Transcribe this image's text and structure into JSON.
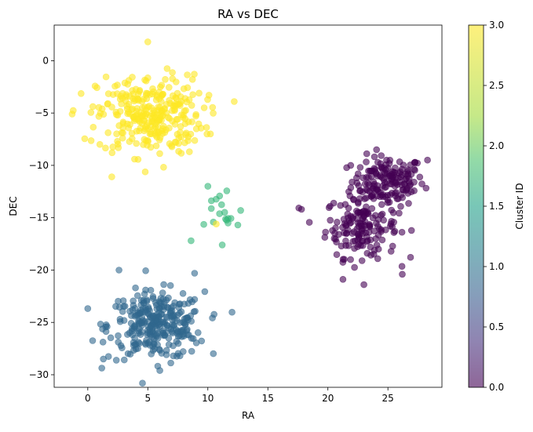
{
  "chart_data": {
    "type": "scatter",
    "title": "RA vs DEC",
    "xlabel": "RA",
    "ylabel": "DEC",
    "xlim": [
      -2.8,
      29.5
    ],
    "ylim": [
      -31.2,
      3.4
    ],
    "xticks": [
      0,
      5,
      10,
      15,
      20,
      25
    ],
    "yticks": [
      0,
      -5,
      -10,
      -15,
      -20,
      -25,
      -30
    ],
    "colorbar": {
      "label": "Cluster ID",
      "range": [
        0.0,
        3.0
      ],
      "ticks": [
        "0.0",
        "0.5",
        "1.0",
        "1.5",
        "2.0",
        "2.5",
        "3.0"
      ],
      "colormap": "viridis"
    },
    "grid": false,
    "marker_alpha": 0.6,
    "clusters": [
      {
        "id": 3,
        "color": "#fde725",
        "n": 300,
        "center": [
          5.2,
          -5.2
        ],
        "spread": [
          2.2,
          1.9
        ]
      },
      {
        "id": 2,
        "color": "#35b779",
        "n": 16,
        "center": [
          11.2,
          -14.3
        ],
        "spread": [
          0.9,
          1.4
        ]
      },
      {
        "id": 1,
        "color": "#31688e",
        "n": 300,
        "center": [
          5.7,
          -25.3
        ],
        "spread": [
          2.0,
          1.6
        ]
      },
      {
        "id": 0,
        "color": "#440154",
        "n": 160,
        "center": [
          25.0,
          -11.5
        ],
        "spread": [
          1.5,
          1.2
        ]
      },
      {
        "id": 0,
        "color": "#440154",
        "n": 160,
        "center": [
          22.8,
          -15.8
        ],
        "spread": [
          1.5,
          1.5
        ]
      }
    ],
    "points_sample": [
      {
        "x": -1.3,
        "y": -5.1,
        "c": 3
      },
      {
        "x": 5.0,
        "y": 1.8,
        "c": 3
      },
      {
        "x": 12.2,
        "y": -3.9,
        "c": 3
      },
      {
        "x": 2.0,
        "y": -11.1,
        "c": 3
      },
      {
        "x": 10.0,
        "y": -12.0,
        "c": 2
      },
      {
        "x": 8.6,
        "y": -17.2,
        "c": 2
      },
      {
        "x": 12.5,
        "y": -15.7,
        "c": 2
      },
      {
        "x": 11.2,
        "y": -17.6,
        "c": 2
      },
      {
        "x": 10.7,
        "y": -15.6,
        "c": 3
      },
      {
        "x": 2.6,
        "y": -20.0,
        "c": 1
      },
      {
        "x": 6.0,
        "y": -29.6,
        "c": 1
      },
      {
        "x": 8.9,
        "y": -20.3,
        "c": 1
      },
      {
        "x": 1.3,
        "y": -28.5,
        "c": 1
      },
      {
        "x": 17.8,
        "y": -14.2,
        "c": 0
      },
      {
        "x": 23.0,
        "y": -21.4,
        "c": 0
      },
      {
        "x": 26.2,
        "y": -20.4,
        "c": 0
      },
      {
        "x": 28.3,
        "y": -9.5,
        "c": 0
      }
    ]
  }
}
